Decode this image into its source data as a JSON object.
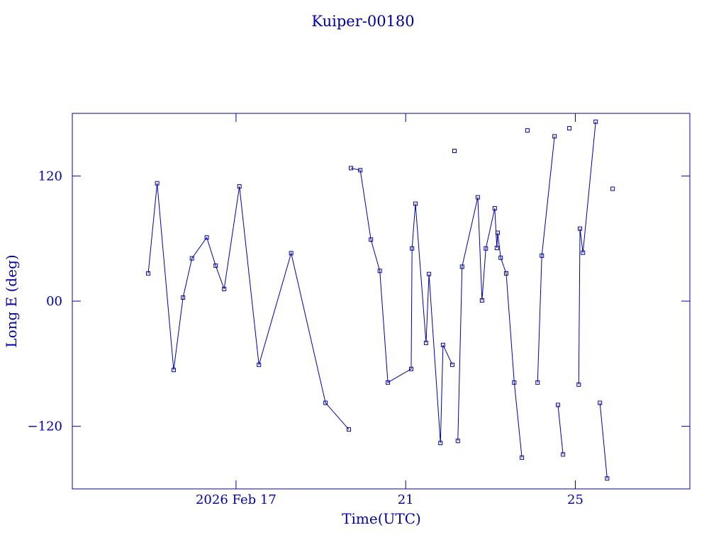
{
  "chart_data": {
    "type": "line",
    "title": "Kuiper-00180",
    "x_label": "Time(UTC)",
    "y_label": "Long E (deg)",
    "xlim": [
      13.14,
      27.7
    ],
    "ylim": [
      -180,
      180
    ],
    "xticks": [
      {
        "value": 17,
        "label": "2026 Feb 17"
      },
      {
        "value": 21,
        "label": "21"
      },
      {
        "value": 25,
        "label": "25"
      }
    ],
    "yticks": [
      {
        "value": -120,
        "label": "−120"
      },
      {
        "value": 0,
        "label": "00"
      },
      {
        "value": 120,
        "label": "120"
      }
    ],
    "color": "#0000a8",
    "x": [
      14.93,
      15.14,
      15.53,
      15.75,
      15.96,
      16.31,
      16.52,
      16.72,
      17.08,
      17.54,
      18.3,
      19.11,
      19.66,
      null,
      19.71,
      19.93,
      20.18,
      20.39,
      20.58,
      21.13,
      21.15,
      21.23,
      21.48,
      21.55,
      21.82,
      21.88,
      22.1,
      null,
      22.15,
      null,
      22.23,
      22.33,
      22.7,
      22.8,
      22.89,
      23.1,
      23.15,
      23.17,
      23.24,
      23.37,
      23.56,
      23.74,
      null,
      23.87,
      null,
      24.11,
      24.21,
      24.51,
      null,
      24.59,
      24.71,
      null,
      24.86,
      null,
      25.08,
      25.11,
      25.18,
      25.48,
      null,
      25.58,
      25.75,
      null,
      25.88
    ],
    "values": [
      26.6,
      113,
      -66,
      3.4,
      41,
      61,
      34,
      11.6,
      110,
      -61,
      46,
      -97.5,
      -123,
      null,
      127.5,
      125.5,
      59,
      29,
      -78,
      -65,
      50.5,
      93.4,
      -40,
      26,
      -136,
      -42,
      -61,
      null,
      144,
      null,
      -134,
      33,
      99.5,
      0.7,
      50.5,
      89,
      51,
      65.5,
      41.6,
      26.6,
      -78,
      -150,
      null,
      163.6,
      null,
      -78,
      43.6,
      158,
      null,
      -99.5,
      -147,
      null,
      165.7,
      null,
      -80,
      69.5,
      46.4,
      172,
      null,
      -97.5,
      -170,
      null,
      107.7
    ]
  }
}
